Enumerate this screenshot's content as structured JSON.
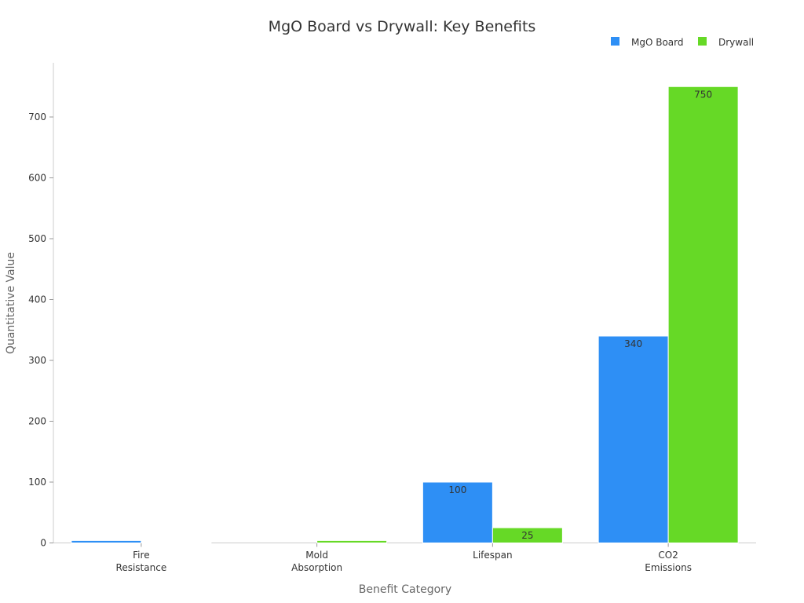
{
  "chart_data": {
    "type": "bar",
    "title": "MgO Board vs Drywall: Key Benefits",
    "xlabel": "Benefit Category",
    "ylabel": "Quantitative Value",
    "categories": [
      [
        "Fire",
        "Resistance"
      ],
      [
        "Mold",
        "Absorption"
      ],
      [
        "Lifespan"
      ],
      [
        "CO2",
        "Emissions"
      ]
    ],
    "series": [
      {
        "name": "MgO Board",
        "color": "#2e8ff5",
        "values": [
          4,
          0,
          100,
          340
        ],
        "labels": [
          null,
          null,
          "100",
          "340"
        ]
      },
      {
        "name": "Drywall",
        "color": "#66d926",
        "values": [
          1,
          4,
          25,
          750
        ],
        "labels": [
          null,
          null,
          "25",
          "750"
        ]
      }
    ],
    "ylim": [
      0,
      785
    ],
    "yticks": [
      0,
      100,
      200,
      300,
      400,
      500,
      600,
      700
    ],
    "grid": false,
    "legend": "top-right"
  }
}
